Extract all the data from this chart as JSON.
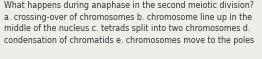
{
  "text": "What happens during anaphase in the second meiotic division?\na. crossing-over of chromosomes b. chromosome line up in the\nmiddle of the nucleus c. tetrads split into two chromosomes d.\ncondensation of chromatids e. chromosomes move to the poles",
  "background_color": "#eeeee8",
  "text_color": "#333333",
  "font_size": 5.7,
  "fig_width": 2.62,
  "fig_height": 0.59,
  "dpi": 100
}
